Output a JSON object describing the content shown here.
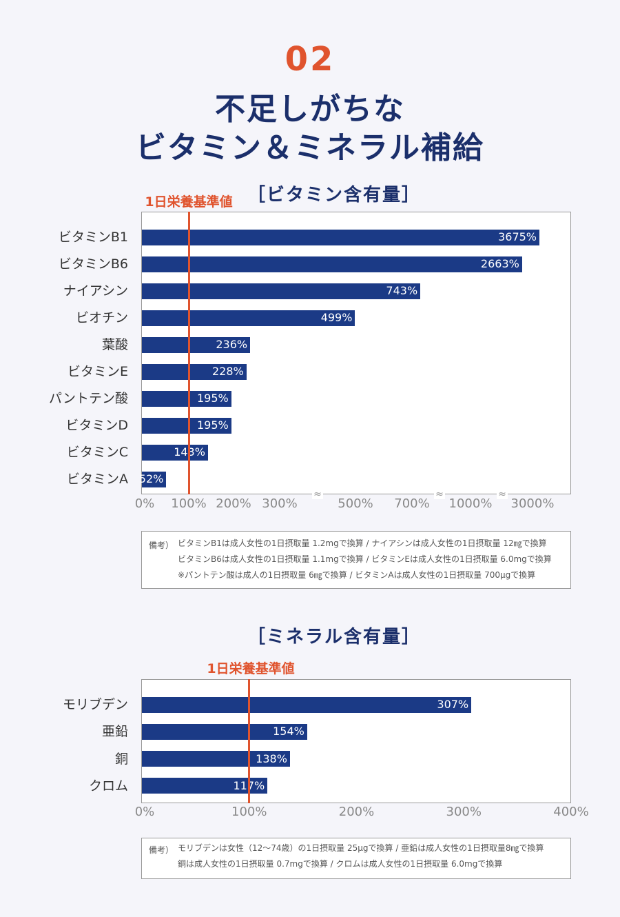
{
  "header": {
    "number": "02",
    "title_line1": "不足しがちな",
    "title_line2": "ビタミン＆ミネラル補給"
  },
  "vitamin_section": {
    "title": "［ビタミン含有量］",
    "ref_label": "1日栄養基準値",
    "note_head": "備考）",
    "notes": [
      "ビタミンB1は成人女性の1日摂取量 1.2mgで換算 / ナイアシンは成人女性の1日摂取量 12㎎で換算",
      "ビタミンB6は成人女性の1日摂取量 1.1mgで換算 / ビタミンEは成人女性の1日摂取量 6.0mgで換算",
      "※パントテン酸は成人の1日摂取量 6㎎で換算 / ビタミンAは成人女性の1日摂取量 700μgで換算"
    ]
  },
  "mineral_section": {
    "title": "［ミネラル含有量］",
    "ref_label": "1日栄養基準値",
    "note_head": "備考）",
    "notes": [
      "モリブデンは女性（12〜74歳）の1日摂取量 25μgで換算 / 亜鉛は成人女性の1日摂取量8㎎で換算",
      "銅は成人女性の1日摂取量 0.7mgで換算 / クロムは成人女性の1日摂取量 6.0mgで換算"
    ]
  },
  "chart_data": [
    {
      "type": "bar",
      "orientation": "horizontal",
      "title": "［ビタミン含有量］",
      "categories": [
        "ビタミンB1",
        "ビタミンB6",
        "ナイアシン",
        "ビオチン",
        "葉酸",
        "ビタミンE",
        "パントテン酸",
        "ビタミンD",
        "ビタミンC",
        "ビタミンA"
      ],
      "values": [
        3675,
        2663,
        743,
        499,
        236,
        228,
        195,
        195,
        143,
        52
      ],
      "value_labels": [
        "3675%",
        "2663%",
        "743%",
        "499%",
        "236%",
        "228%",
        "195%",
        "195%",
        "143%",
        "52%"
      ],
      "reference_value": 100,
      "reference_label": "1日栄養基準値",
      "axis_scale": "broken",
      "x_ticks": [
        0,
        100,
        200,
        300,
        500,
        700,
        1000,
        3000
      ],
      "x_tick_labels": [
        "0%",
        "100%",
        "200%",
        "300%",
        "500%",
        "700%",
        "1000%",
        "3000%"
      ],
      "axis_breaks": [
        "300%-500%",
        "700%-1000%",
        "1000%-3000%"
      ],
      "colors": {
        "bar": "#1b3a86",
        "reference": "#e0542e"
      }
    },
    {
      "type": "bar",
      "orientation": "horizontal",
      "title": "［ミネラル含有量］",
      "categories": [
        "モリブデン",
        "亜鉛",
        "銅",
        "クロム"
      ],
      "values": [
        307,
        154,
        138,
        117
      ],
      "value_labels": [
        "307%",
        "154%",
        "138%",
        "117%"
      ],
      "reference_value": 100,
      "reference_label": "1日栄養基準値",
      "xlim": [
        0,
        400
      ],
      "x_ticks": [
        0,
        100,
        200,
        300,
        400
      ],
      "x_tick_labels": [
        "0%",
        "100%",
        "200%",
        "300%",
        "400%"
      ],
      "colors": {
        "bar": "#1b3a86",
        "reference": "#e0542e"
      }
    }
  ]
}
